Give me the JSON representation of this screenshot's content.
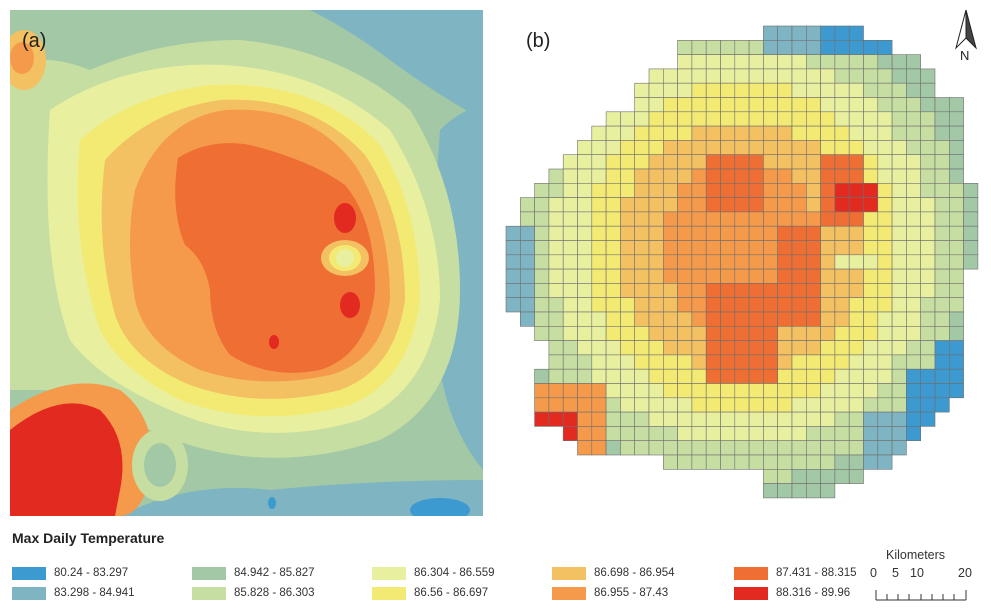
{
  "panels": {
    "a_label": "(a)",
    "b_label": "(b)"
  },
  "north_arrow": {
    "letter": "N",
    "icon": "north-arrow-icon"
  },
  "legend": {
    "title": "Max Daily Temperature",
    "classes": [
      {
        "label": "80.24 - 83.297",
        "color": "#3c9ad0"
      },
      {
        "label": "83.298 - 84.941",
        "color": "#7fb4c2"
      },
      {
        "label": "84.942 - 85.827",
        "color": "#a3c8a6"
      },
      {
        "label": "85.828 - 86.303",
        "color": "#c7dea2"
      },
      {
        "label": "86.304 - 86.559",
        "color": "#e8f0a0"
      },
      {
        "label": "86.56 - 86.697",
        "color": "#f3ea74"
      },
      {
        "label": "86.698 - 86.954",
        "color": "#f3c062"
      },
      {
        "label": "86.955 - 87.43",
        "color": "#f59a4a"
      },
      {
        "label": "87.431 - 88.315",
        "color": "#ee6e34"
      },
      {
        "label": "88.316 - 89.96",
        "color": "#e32a20"
      }
    ]
  },
  "scale_bar": {
    "title": "Kilometers",
    "labels": [
      "0",
      "5",
      "10",
      "20"
    ]
  }
}
